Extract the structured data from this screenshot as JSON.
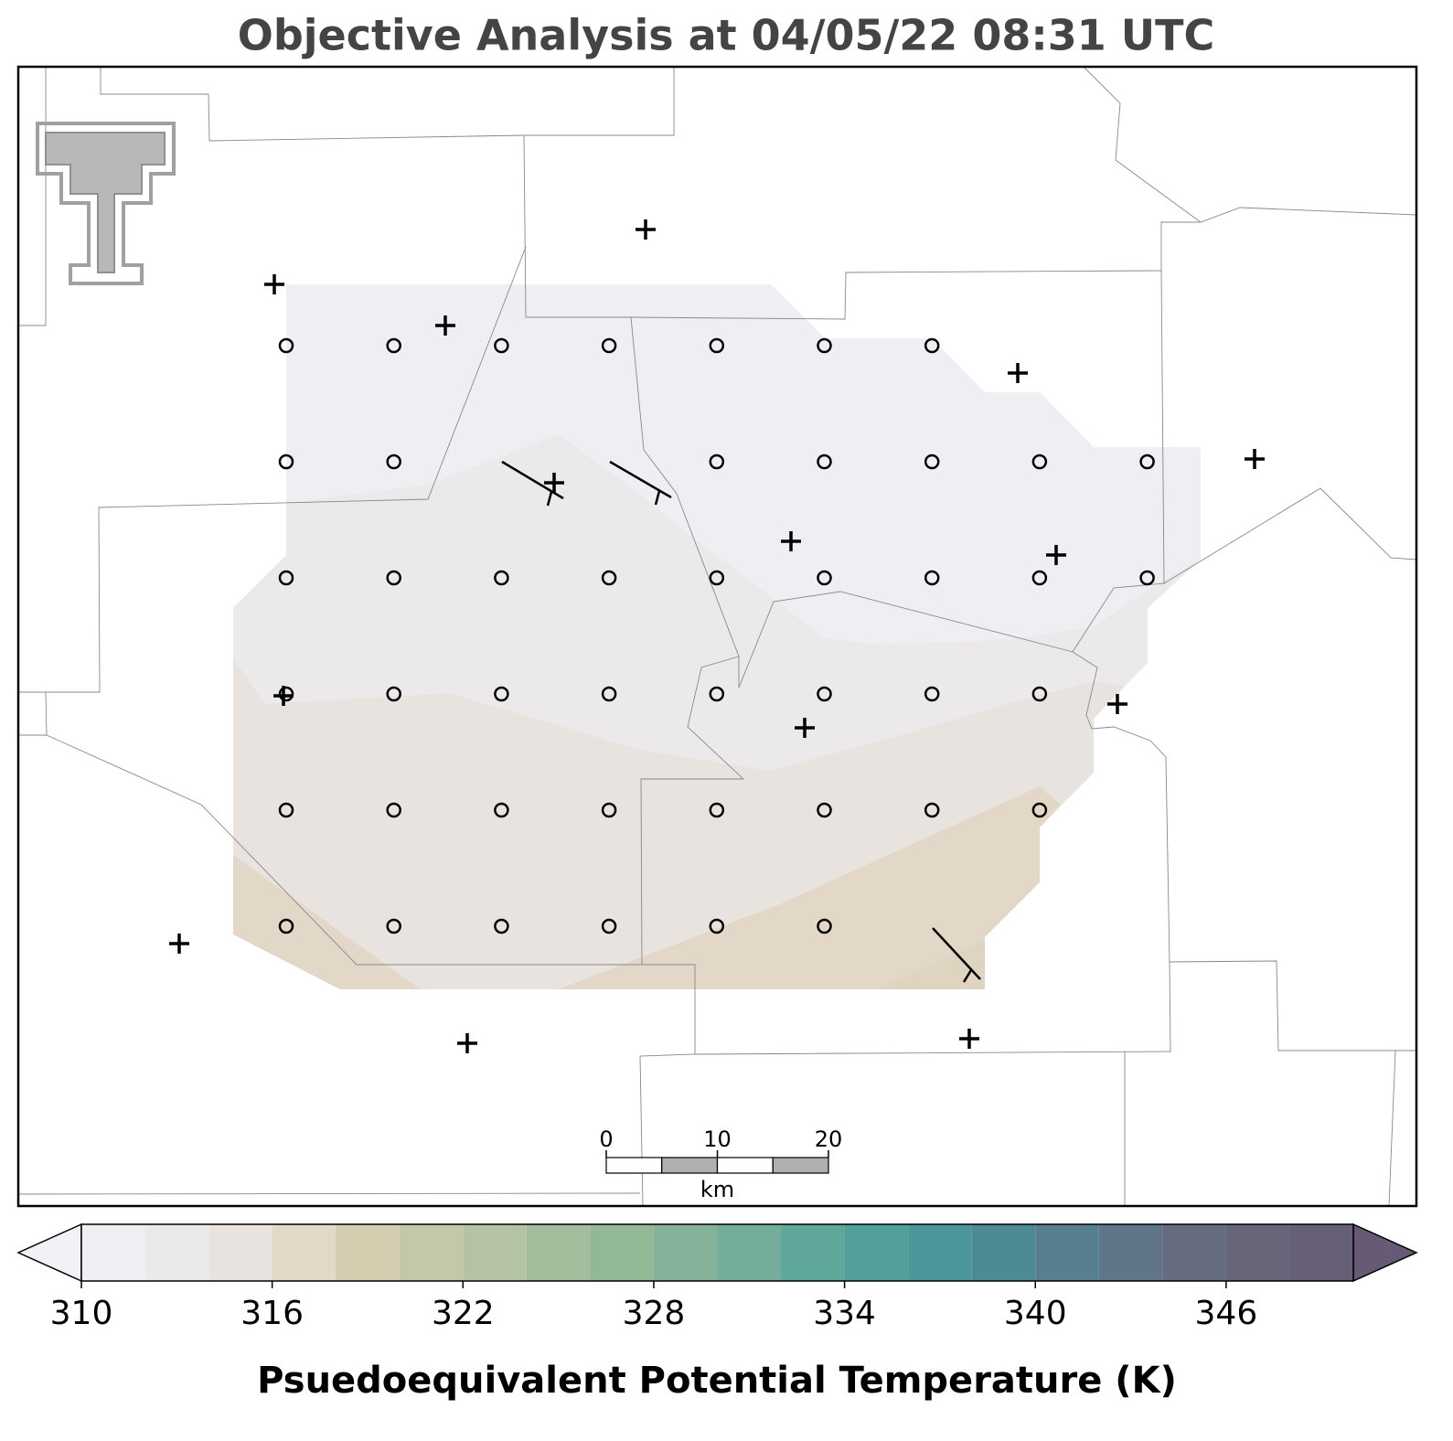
{
  "chart_data": {
    "type": "contourf-map",
    "title": "Objective Analysis at 04/05/22 08:31 UTC",
    "colorbar": {
      "label": "Psuedoequivalent Potential Temperature (K)",
      "levels": [
        310,
        312,
        314,
        316,
        318,
        320,
        322,
        324,
        326,
        328,
        330,
        332,
        334,
        336,
        338,
        340,
        342,
        344,
        346,
        348,
        350
      ],
      "colors": [
        "#efeef3",
        "#ece9eb",
        "#e8e3df",
        "#e3d8c8",
        "#d5cdb0",
        "#c5c8a8",
        "#b3c3a3",
        "#a2bd9c",
        "#93b896",
        "#85b39a",
        "#74ad99",
        "#5fa79a",
        "#519f9b",
        "#4b9698",
        "#4d8a94",
        "#587f8f",
        "#617588",
        "#666c80",
        "#686579",
        "#665f77"
      ],
      "under_color": "#f2f1f5",
      "over_color": "#665a74",
      "ticks": [
        310,
        316,
        322,
        328,
        334,
        340,
        346
      ]
    },
    "scale_bar": {
      "ticks": [
        0,
        10,
        20
      ],
      "unit": "km"
    }
  }
}
